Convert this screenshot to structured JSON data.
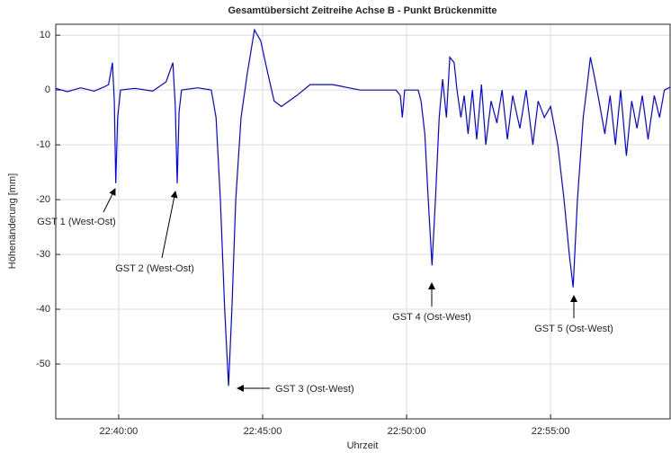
{
  "chart_data": {
    "type": "line",
    "title": "Gesamtübersicht Zeitreihe Achse B - Punkt Brückenmitte",
    "xlabel": "Uhrzeit",
    "ylabel": "Höhenänderung [mm]",
    "x": [
      "22:37:49",
      "22:38:13",
      "22:38:41",
      "22:39:09",
      "22:39:28",
      "22:39:39",
      "22:39:47",
      "22:39:51",
      "22:39:54",
      "22:39:58",
      "22:40:04",
      "22:40:34",
      "22:41:11",
      "22:41:39",
      "22:41:53",
      "22:41:58",
      "22:42:02",
      "22:42:06",
      "22:42:11",
      "22:42:45",
      "22:43:13",
      "22:43:23",
      "22:43:32",
      "22:43:41",
      "22:43:49",
      "22:43:56",
      "22:44:04",
      "22:44:15",
      "22:44:28",
      "22:44:43",
      "22:44:56",
      "22:45:11",
      "22:45:24",
      "22:45:39",
      "22:46:11",
      "22:46:39",
      "22:47:26",
      "22:48:23",
      "22:49:38",
      "22:49:47",
      "22:49:51",
      "22:49:56",
      "22:50:24",
      "22:50:30",
      "22:50:38",
      "22:50:45",
      "22:50:53",
      "22:51:00",
      "22:51:08",
      "22:51:15",
      "22:51:23",
      "22:51:30",
      "22:51:39",
      "22:51:45",
      "22:51:53",
      "22:52:00",
      "22:52:08",
      "22:52:17",
      "22:52:26",
      "22:52:36",
      "22:52:45",
      "22:52:56",
      "22:53:08",
      "22:53:19",
      "22:53:30",
      "22:53:41",
      "22:53:56",
      "22:54:09",
      "22:54:23",
      "22:54:34",
      "22:54:47",
      "22:55:00",
      "22:55:15",
      "22:55:28",
      "22:55:39",
      "22:55:47",
      "22:55:56",
      "22:56:08",
      "22:56:15",
      "22:56:23",
      "22:56:30",
      "22:56:41",
      "22:56:53",
      "22:57:04",
      "22:57:15",
      "22:57:26",
      "22:57:38",
      "22:57:49",
      "22:58:00",
      "22:58:11",
      "22:58:23",
      "22:58:36",
      "22:58:47",
      "22:58:57",
      "22:59:09"
    ],
    "series": [
      {
        "name": "Achse B",
        "color": "#0000ff",
        "values": [
          0.3,
          -0.3,
          0.4,
          -0.2,
          0.5,
          1,
          5,
          -2,
          -17,
          -5,
          0,
          0.3,
          -0.2,
          1.5,
          5,
          -3,
          -17,
          -4,
          0,
          0.4,
          0,
          -5,
          -20,
          -40,
          -54,
          -40,
          -20,
          -5,
          3,
          11,
          9,
          3,
          -2,
          -3,
          -1,
          1,
          1,
          0,
          0,
          -1,
          -5,
          0,
          0,
          -2,
          -8,
          -20,
          -32,
          -20,
          -5,
          2,
          -5,
          6,
          5,
          0,
          -5,
          -1,
          -8,
          0,
          -9,
          1,
          -10,
          -2,
          -6,
          0,
          -9,
          -1,
          -7,
          0,
          -10,
          -2,
          -5,
          -3,
          -10,
          -20,
          -30,
          -36,
          -20,
          -5,
          0,
          6,
          3,
          -2,
          -8,
          -1,
          -10,
          0,
          -12,
          -2,
          -7,
          -1,
          -9,
          -1,
          -5,
          0,
          0.5
        ]
      }
    ],
    "xlim": [
      "22:37:49",
      "22:59:09"
    ],
    "xticks": [
      "22:40:00",
      "22:45:00",
      "22:50:00",
      "22:55:00"
    ],
    "ylim": [
      -60,
      12
    ],
    "yticks": [
      10,
      0,
      -10,
      -20,
      -30,
      -40,
      -50
    ],
    "grid": true,
    "annotations": [
      "GST 1 (West-Ost)",
      "GST 2 (West-Ost)",
      "GST 3 (Ost-West)",
      "GST 4 (Ost-West)",
      "GST 5 (Ost-West)"
    ]
  }
}
